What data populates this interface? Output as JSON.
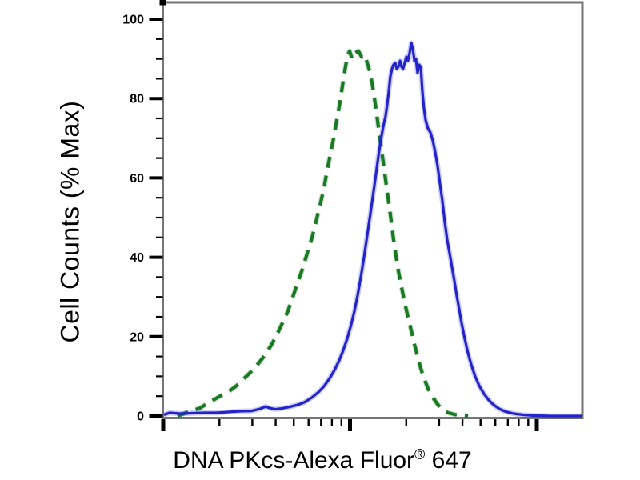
{
  "figure": {
    "ylabel": "Cell Counts (% Max)",
    "xlabel_main": "DNA PKcs-Alexa Fluor",
    "xlabel_sup": "®",
    "xlabel_suffix": " 647"
  },
  "colors": {
    "background": "#ffffff",
    "frame": "#757575",
    "ticks_and_text": "#000000",
    "green_dashed": "#1a7a23",
    "blue_solid": "#2323cc"
  },
  "chart_data": {
    "type": "line",
    "subtype": "flow-cytometry-histogram-overlay",
    "title": "",
    "xlabel": "DNA PKcs-Alexa Fluor® 647",
    "ylabel": "Cell Counts (% Max)",
    "grid": false,
    "legend": "none",
    "x_axis": {
      "scale": "log10",
      "unit": "decades from axis origin (no numeric tick labels shown)",
      "range_decades": [
        0,
        2.245
      ],
      "major_tick_decades": [
        0,
        1,
        2
      ],
      "minor_ticks": "sub-decade marks at 2-9 within each decade",
      "tick_labels_visible": false
    },
    "y_axis": {
      "label": "Cell Counts (% Max)",
      "range": [
        0,
        100
      ],
      "major_ticks": [
        0,
        20,
        40,
        60,
        80,
        100
      ],
      "minor_tick_step": 5
    },
    "series": [
      {
        "name": "green-dashed-histogram",
        "style": "dashed",
        "color": "#1a7a23",
        "peak": {
          "decade": 1.0,
          "percent_max": 92
        },
        "points": [
          [
            0.077,
            0
          ],
          [
            0.133,
            1
          ],
          [
            0.197,
            2
          ],
          [
            0.248,
            3.5
          ],
          [
            0.304,
            5
          ],
          [
            0.36,
            6.5
          ],
          [
            0.403,
            8
          ],
          [
            0.445,
            10
          ],
          [
            0.488,
            12
          ],
          [
            0.531,
            14.5
          ],
          [
            0.574,
            17.5
          ],
          [
            0.604,
            20
          ],
          [
            0.634,
            23
          ],
          [
            0.668,
            26.5
          ],
          [
            0.694,
            30
          ],
          [
            0.719,
            33.5
          ],
          [
            0.745,
            37
          ],
          [
            0.771,
            41
          ],
          [
            0.797,
            45
          ],
          [
            0.818,
            49
          ],
          [
            0.839,
            53
          ],
          [
            0.861,
            57.5
          ],
          [
            0.878,
            62
          ],
          [
            0.895,
            66
          ],
          [
            0.912,
            70
          ],
          [
            0.929,
            74.5
          ],
          [
            0.946,
            79
          ],
          [
            0.959,
            83
          ],
          [
            0.972,
            87
          ],
          [
            0.985,
            90.5
          ],
          [
            0.998,
            92
          ],
          [
            1.011,
            90
          ],
          [
            1.028,
            91.5
          ],
          [
            1.045,
            92
          ],
          [
            1.062,
            90.5
          ],
          [
            1.079,
            91
          ],
          [
            1.092,
            89
          ],
          [
            1.105,
            87
          ],
          [
            1.118,
            84
          ],
          [
            1.131,
            80
          ],
          [
            1.143,
            76
          ],
          [
            1.156,
            71.5
          ],
          [
            1.169,
            67
          ],
          [
            1.182,
            62.5
          ],
          [
            1.195,
            58
          ],
          [
            1.208,
            53.5
          ],
          [
            1.221,
            49
          ],
          [
            1.233,
            44.5
          ],
          [
            1.246,
            40.5
          ],
          [
            1.259,
            36.5
          ],
          [
            1.276,
            32.5
          ],
          [
            1.293,
            28.5
          ],
          [
            1.31,
            25
          ],
          [
            1.328,
            21.5
          ],
          [
            1.345,
            18
          ],
          [
            1.362,
            15
          ],
          [
            1.379,
            12
          ],
          [
            1.396,
            9.5
          ],
          [
            1.417,
            7
          ],
          [
            1.439,
            5
          ],
          [
            1.465,
            3.2
          ],
          [
            1.49,
            1.8
          ],
          [
            1.525,
            0.8
          ],
          [
            1.576,
            0.2
          ],
          [
            1.632,
            0
          ]
        ]
      },
      {
        "name": "blue-solid-histogram",
        "style": "solid",
        "color": "#2323cc",
        "peak": {
          "decade": 1.33,
          "percent_max": 94
        },
        "points": [
          [
            0.004,
            0.3
          ],
          [
            0.034,
            0.8
          ],
          [
            0.09,
            0.6
          ],
          [
            0.154,
            0.7
          ],
          [
            0.218,
            0.8
          ],
          [
            0.283,
            0.8
          ],
          [
            0.347,
            1.0
          ],
          [
            0.411,
            1.2
          ],
          [
            0.475,
            1.3
          ],
          [
            0.518,
            1.8
          ],
          [
            0.548,
            2.4
          ],
          [
            0.57,
            2.0
          ],
          [
            0.6,
            1.7
          ],
          [
            0.634,
            1.9
          ],
          [
            0.677,
            2.3
          ],
          [
            0.719,
            2.8
          ],
          [
            0.758,
            3.5
          ],
          [
            0.797,
            4.7
          ],
          [
            0.831,
            6.0
          ],
          [
            0.861,
            7.5
          ],
          [
            0.891,
            9.5
          ],
          [
            0.916,
            11.5
          ],
          [
            0.942,
            14
          ],
          [
            0.963,
            16.5
          ],
          [
            0.985,
            19.5
          ],
          [
            1.006,
            23
          ],
          [
            1.024,
            26.5
          ],
          [
            1.041,
            30.5
          ],
          [
            1.058,
            35
          ],
          [
            1.075,
            40
          ],
          [
            1.092,
            45.5
          ],
          [
            1.109,
            51
          ],
          [
            1.126,
            56.5
          ],
          [
            1.139,
            61
          ],
          [
            1.152,
            65.5
          ],
          [
            1.165,
            69.5
          ],
          [
            1.178,
            73
          ],
          [
            1.19,
            75.5
          ],
          [
            1.199,
            78.5
          ],
          [
            1.208,
            82
          ],
          [
            1.216,
            85.5
          ],
          [
            1.225,
            87.5
          ],
          [
            1.233,
            88.5
          ],
          [
            1.242,
            89
          ],
          [
            1.25,
            87.5
          ],
          [
            1.259,
            88
          ],
          [
            1.268,
            89.5
          ],
          [
            1.276,
            88
          ],
          [
            1.284,
            87.5
          ],
          [
            1.293,
            89
          ],
          [
            1.302,
            90.5
          ],
          [
            1.31,
            89.5
          ],
          [
            1.319,
            91.5
          ],
          [
            1.328,
            94
          ],
          [
            1.336,
            92.5
          ],
          [
            1.345,
            89.5
          ],
          [
            1.353,
            90
          ],
          [
            1.362,
            86.5
          ],
          [
            1.37,
            88.5
          ],
          [
            1.379,
            88
          ],
          [
            1.388,
            81.5
          ],
          [
            1.396,
            77.5
          ],
          [
            1.405,
            74.5
          ],
          [
            1.417,
            72.5
          ],
          [
            1.43,
            71.5
          ],
          [
            1.443,
            69.5
          ],
          [
            1.456,
            66.5
          ],
          [
            1.469,
            63
          ],
          [
            1.482,
            58.5
          ],
          [
            1.495,
            54
          ],
          [
            1.507,
            49
          ],
          [
            1.52,
            44.5
          ],
          [
            1.533,
            41
          ],
          [
            1.546,
            37.5
          ],
          [
            1.559,
            34
          ],
          [
            1.571,
            30.5
          ],
          [
            1.584,
            27
          ],
          [
            1.597,
            23.5
          ],
          [
            1.614,
            19.5
          ],
          [
            1.631,
            16
          ],
          [
            1.649,
            13
          ],
          [
            1.67,
            10
          ],
          [
            1.692,
            7.6
          ],
          [
            1.717,
            5.6
          ],
          [
            1.743,
            4.0
          ],
          [
            1.769,
            2.8
          ],
          [
            1.799,
            1.8
          ],
          [
            1.833,
            1.1
          ],
          [
            1.876,
            0.6
          ],
          [
            1.927,
            0.3
          ],
          [
            1.987,
            0.1
          ],
          [
            2.081,
            0.0
          ],
          [
            2.24,
            0.0
          ]
        ]
      }
    ]
  }
}
